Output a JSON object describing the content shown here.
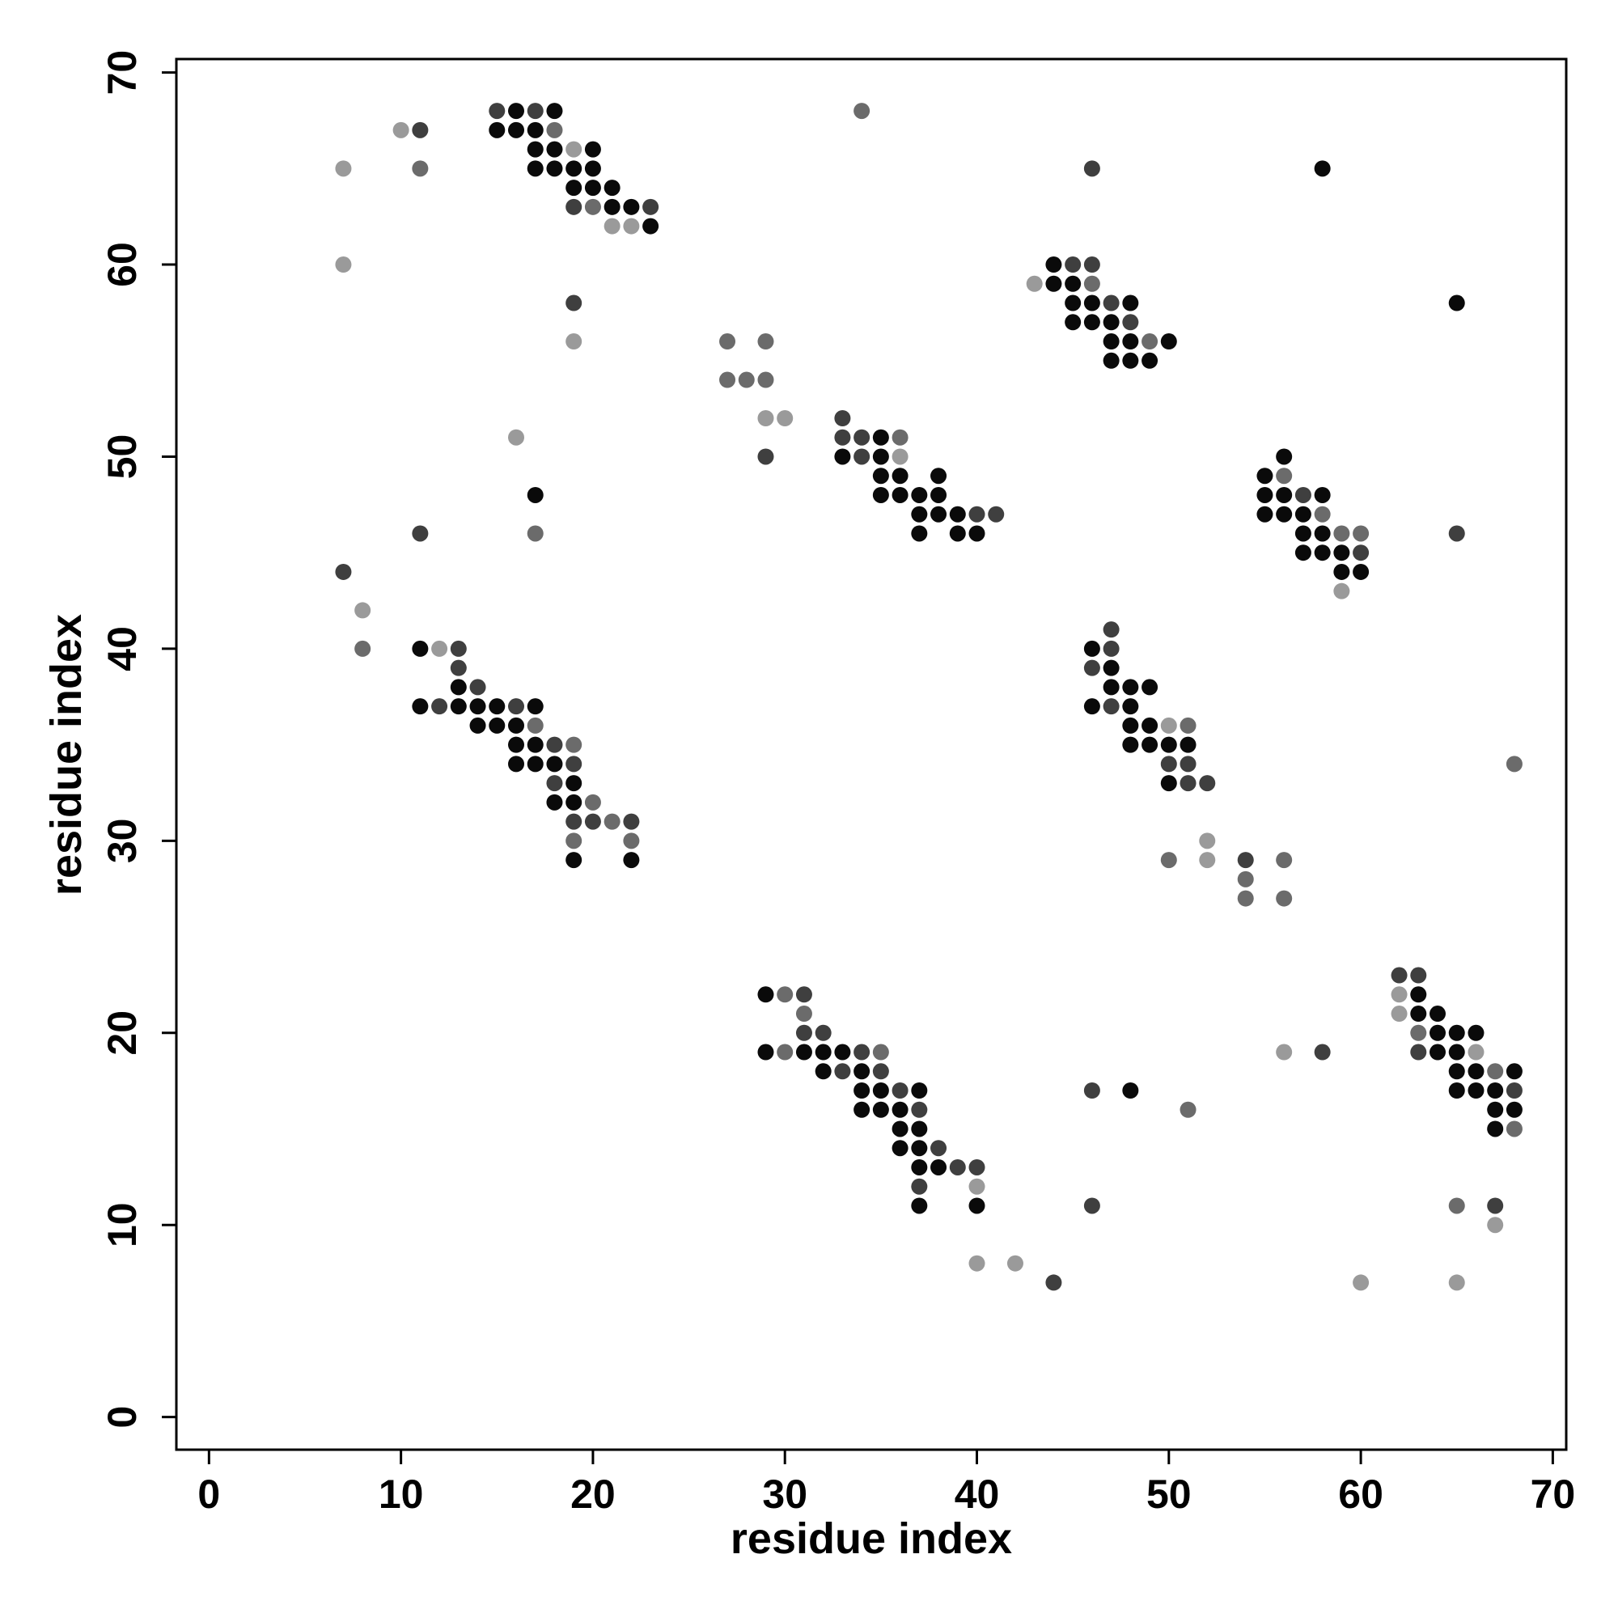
{
  "chart_data": {
    "type": "scatter",
    "xlabel": "residue index",
    "ylabel": "residue index",
    "xlim": [
      -1.7,
      70.7
    ],
    "ylim": [
      -1.7,
      70.7
    ],
    "xticks": [
      0,
      10,
      20,
      30,
      40,
      50,
      60,
      70
    ],
    "yticks": [
      0,
      10,
      20,
      30,
      40,
      50,
      60,
      70
    ],
    "grid": false,
    "series": [
      {
        "color": "#0a0a0a",
        "x": [
          58,
          65,
          16,
          18,
          15,
          16,
          17,
          17,
          18,
          20,
          17,
          18,
          19,
          20,
          19,
          20,
          21,
          21,
          22,
          23,
          17,
          11,
          13,
          11,
          13,
          14,
          15,
          17,
          14,
          15,
          16,
          16,
          17,
          16,
          17,
          18,
          19,
          18,
          19,
          19,
          22,
          35,
          33,
          35,
          35,
          36,
          38,
          35,
          36,
          37,
          38,
          37,
          38,
          39,
          37,
          39,
          40,
          44,
          44,
          45,
          45,
          46,
          48,
          45,
          46,
          47,
          47,
          48,
          50,
          47,
          48,
          49,
          56,
          55,
          55,
          56,
          58,
          55,
          56,
          57,
          57,
          58,
          57,
          58,
          59,
          59,
          60,
          46,
          47,
          47,
          48,
          49,
          46,
          48,
          48,
          49,
          48,
          49,
          50,
          51,
          50,
          29,
          29,
          31,
          32,
          33,
          32,
          34,
          34,
          35,
          37,
          34,
          35,
          36,
          36,
          37,
          36,
          37,
          37,
          38,
          37,
          40,
          48,
          63,
          63,
          64,
          64,
          65,
          66,
          64,
          65,
          65,
          66,
          68,
          65,
          66,
          67,
          67,
          68,
          67
        ],
        "values": [
          65,
          58,
          68,
          68,
          67,
          67,
          67,
          66,
          66,
          66,
          65,
          65,
          65,
          65,
          64,
          64,
          64,
          63,
          63,
          62,
          48,
          40,
          38,
          37,
          37,
          37,
          37,
          37,
          36,
          36,
          36,
          35,
          35,
          34,
          34,
          34,
          33,
          32,
          32,
          29,
          29,
          51,
          50,
          50,
          49,
          49,
          49,
          48,
          48,
          48,
          48,
          47,
          47,
          47,
          46,
          46,
          46,
          60,
          59,
          59,
          58,
          58,
          58,
          57,
          57,
          57,
          56,
          56,
          56,
          55,
          55,
          55,
          50,
          49,
          48,
          48,
          48,
          47,
          47,
          47,
          46,
          46,
          45,
          45,
          45,
          44,
          44,
          40,
          39,
          38,
          38,
          38,
          37,
          37,
          36,
          36,
          35,
          35,
          35,
          35,
          33,
          22,
          19,
          19,
          19,
          19,
          18,
          18,
          17,
          17,
          17,
          16,
          16,
          16,
          15,
          15,
          14,
          14,
          13,
          13,
          11,
          11,
          17,
          22,
          21,
          21,
          20,
          20,
          20,
          19,
          19,
          18,
          18,
          18,
          17,
          17,
          17,
          16,
          16,
          15
        ]
      },
      {
        "color": "#3f3f3f",
        "x": [
          11,
          15,
          17,
          19,
          23,
          19,
          11,
          7,
          13,
          13,
          14,
          12,
          16,
          18,
          19,
          18,
          19,
          20,
          22,
          29,
          33,
          33,
          34,
          34,
          40,
          41,
          46,
          45,
          46,
          47,
          48,
          57,
          60,
          65,
          47,
          47,
          46,
          47,
          50,
          51,
          51,
          52,
          54,
          31,
          31,
          32,
          34,
          33,
          35,
          36,
          37,
          38,
          39,
          40,
          37,
          46,
          44,
          46,
          58,
          62,
          63,
          63,
          68,
          67
        ],
        "values": [
          67,
          68,
          68,
          63,
          63,
          58,
          46,
          44,
          40,
          39,
          38,
          37,
          37,
          35,
          34,
          33,
          31,
          31,
          31,
          50,
          52,
          51,
          51,
          50,
          47,
          47,
          65,
          60,
          60,
          58,
          57,
          48,
          45,
          46,
          41,
          40,
          39,
          37,
          34,
          34,
          33,
          33,
          29,
          22,
          20,
          20,
          19,
          18,
          18,
          17,
          16,
          14,
          13,
          13,
          12,
          11,
          7,
          17,
          19,
          23,
          23,
          19,
          17,
          11
        ]
      },
      {
        "color": "#6b6b6b",
        "x": [
          11,
          18,
          20,
          17,
          19,
          20,
          21,
          19,
          22,
          34,
          17,
          8,
          27,
          29,
          27,
          28,
          29,
          36,
          46,
          49,
          56,
          58,
          59,
          60,
          51,
          68,
          50,
          56,
          54,
          54,
          56,
          30,
          31,
          30,
          35,
          51,
          63,
          67,
          68,
          65
        ],
        "values": [
          65,
          67,
          63,
          36,
          35,
          32,
          31,
          30,
          30,
          68,
          46,
          40,
          56,
          56,
          54,
          54,
          54,
          51,
          59,
          56,
          49,
          47,
          46,
          46,
          36,
          34,
          29,
          29,
          28,
          27,
          27,
          22,
          21,
          19,
          19,
          16,
          20,
          18,
          15,
          11
        ]
      },
      {
        "color": "#9a9a9a",
        "x": [
          7,
          7,
          10,
          19,
          21,
          22,
          19,
          16,
          8,
          12,
          29,
          30,
          36,
          43,
          59,
          50,
          52,
          52,
          40,
          40,
          42,
          56,
          62,
          62,
          66,
          67,
          60,
          65
        ],
        "values": [
          65,
          60,
          67,
          66,
          62,
          62,
          56,
          51,
          42,
          40,
          52,
          52,
          50,
          59,
          43,
          36,
          30,
          29,
          12,
          8,
          8,
          19,
          22,
          21,
          19,
          10,
          7,
          7
        ]
      }
    ]
  }
}
